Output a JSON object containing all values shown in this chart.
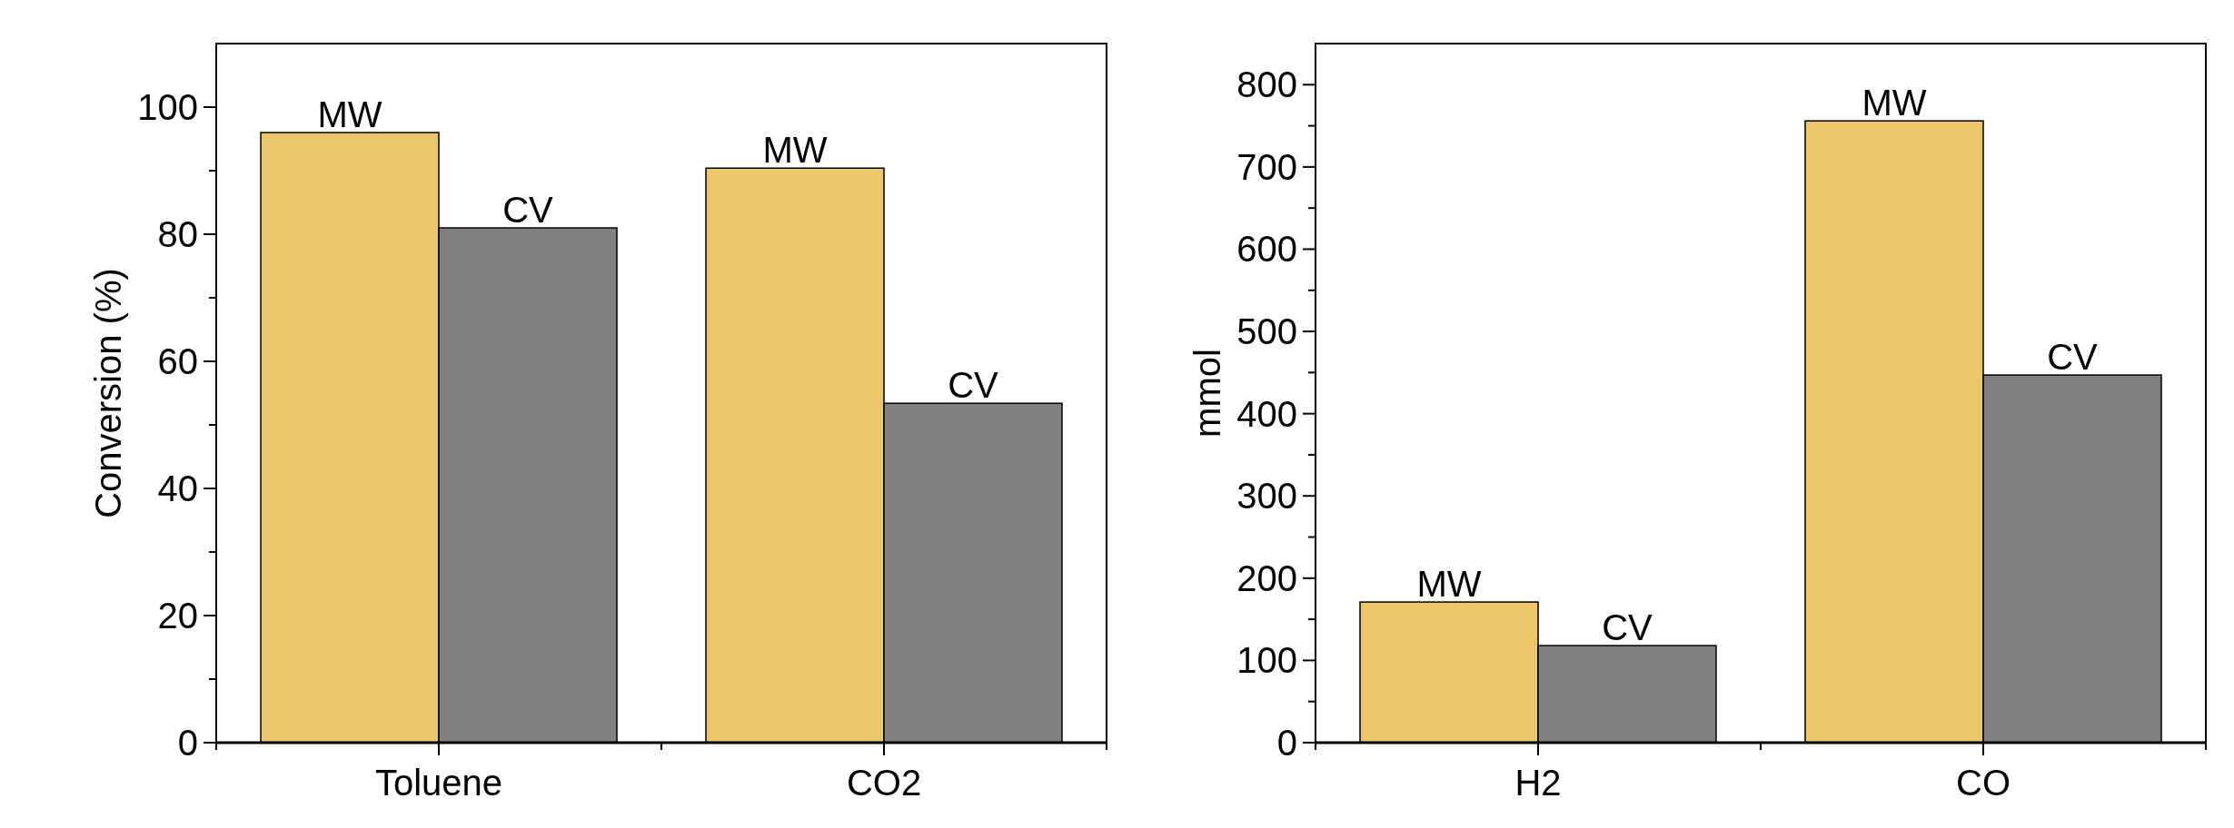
{
  "chart_data": [
    {
      "type": "bar",
      "ylabel": "Conversion (%)",
      "categories": [
        "Toluene",
        "CO2"
      ],
      "ylim": [
        0,
        110
      ],
      "yticks": [
        0,
        {
          "value": 10,
          "label": null
        },
        20,
        {
          "value": 30,
          "label": null
        },
        40,
        {
          "value": 50,
          "label": null
        },
        60,
        {
          "value": 70,
          "label": null
        },
        80,
        {
          "value": 90,
          "label": null
        },
        100
      ],
      "series": [
        {
          "name": "MW",
          "color": "#ecc66b",
          "values": [
            96,
            90.4
          ]
        },
        {
          "name": "CV",
          "color": "#808080",
          "values": [
            81,
            53.4
          ]
        }
      ]
    },
    {
      "type": "bar",
      "ylabel": "mmol",
      "categories": [
        "H2",
        "CO"
      ],
      "ylim": [
        0,
        850
      ],
      "yticks": [
        0,
        {
          "value": 50,
          "label": null
        },
        100,
        {
          "value": 150,
          "label": null
        },
        200,
        {
          "value": 250,
          "label": null
        },
        300,
        {
          "value": 350,
          "label": null
        },
        400,
        {
          "value": 450,
          "label": null
        },
        500,
        {
          "value": 550,
          "label": null
        },
        600,
        {
          "value": 650,
          "label": null
        },
        700,
        {
          "value": 750,
          "label": null
        },
        800
      ],
      "series": [
        {
          "name": "MW",
          "color": "#ecc66b",
          "values": [
            171,
            756
          ]
        },
        {
          "name": "CV",
          "color": "#808080",
          "values": [
            118,
            447
          ]
        }
      ]
    }
  ]
}
